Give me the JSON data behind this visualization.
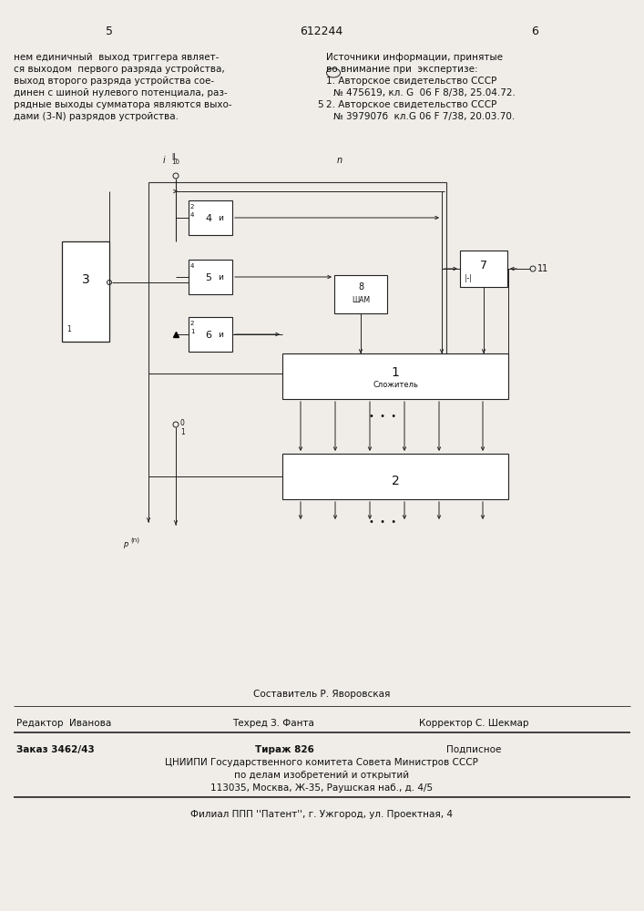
{
  "page_left": "5",
  "page_center": "612244",
  "page_right": "6",
  "left_text": [
    "нем единичный  выход триггера являет-",
    "ся выходом  первого разряда устройства,",
    "выход второго разряда устройства сое-",
    "динен с шиной нулевого потенциала, раз-",
    "рядные выходы сумматора являются выхо-",
    "дами (3-N) разрядов устройства."
  ],
  "right_title": "Источники информации, принятые",
  "right_line0": "во внимание при  экспертизе:",
  "right_line1": "1. Авторское свидетельство СССР",
  "right_line2": "№ 475619, кл. G  06 F 8/38, 25.04.72.",
  "right_num5": "5",
  "right_line3": "2. Авторское свидетельство СССР",
  "right_line4": "№ 397907б  кл.G 06 F 7/38, 20.03.70.",
  "bottom_composer": "Составитель Р. Яворовская",
  "bottom_editor": "Редактор  Иванова",
  "bottom_tech": "Техред З. Фанта",
  "bottom_corrector": "Корректор С. Шекмар",
  "bottom_order": "Заказ 3462/43",
  "bottom_tirazh": "Тираж 826",
  "bottom_podpisnoe": "Подписное",
  "bottom_cniip1": "ЦНИИПИ Государственного комитета Совета Министров СССР",
  "bottom_cniip2": "по делам изобретений и открытий",
  "bottom_addr": "113035, Москва, Ж-35, Раушская наб., д. 4/5",
  "bottom_filial": "Филиал ППП ''Патент'', г. Ужгород, ул. Проектная, 4",
  "bg": "#f0ede8"
}
